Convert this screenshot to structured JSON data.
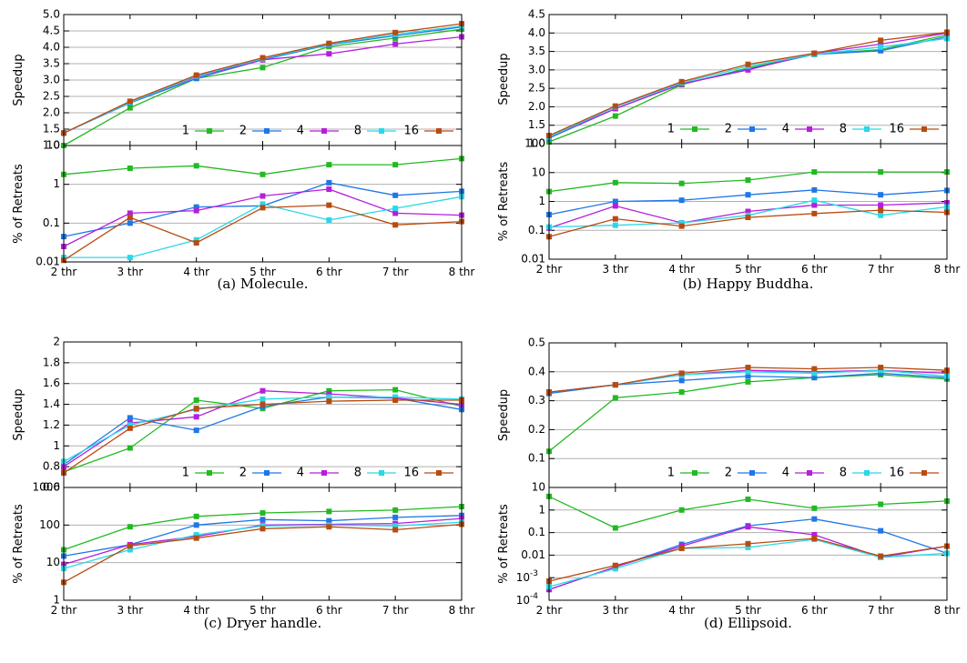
{
  "chart_data": [
    {
      "caption": "(a) Molecule.",
      "type": "line",
      "x": [
        "2 thr",
        "3 thr",
        "4 thr",
        "5 thr",
        "6 thr",
        "7 thr",
        "8 thr"
      ],
      "legend": {
        "placement": "bottom-right"
      },
      "grid": true,
      "series_colors": {
        "1": "#22b922",
        "2": "#1f77e6",
        "4": "#b51fdc",
        "8": "#28d8e8",
        "16": "#b84b10"
      },
      "top": {
        "ylabel": "Speedup",
        "scale": "linear",
        "ylim": [
          1.0,
          5.0
        ],
        "yticks": [
          "1.0",
          "1.5",
          "2.0",
          "2.5",
          "3.0",
          "3.5",
          "4.0",
          "4.5",
          "5.0"
        ],
        "series": [
          {
            "name": "1",
            "values": [
              1.0,
              2.15,
              3.05,
              3.38,
              4.02,
              4.28,
              4.55
            ]
          },
          {
            "name": "2",
            "values": [
              1.38,
              2.3,
              3.05,
              3.62,
              4.08,
              4.35,
              4.62
            ]
          },
          {
            "name": "4",
            "values": [
              1.38,
              2.32,
              3.1,
              3.62,
              3.8,
              4.1,
              4.32
            ]
          },
          {
            "name": "8",
            "values": [
              1.38,
              2.32,
              3.12,
              3.65,
              4.1,
              4.4,
              4.65
            ]
          },
          {
            "name": "16",
            "values": [
              1.38,
              2.35,
              3.15,
              3.68,
              4.12,
              4.45,
              4.72
            ]
          }
        ]
      },
      "bottom": {
        "ylabel": "% of Retreats",
        "scale": "log",
        "ylim": [
          0.01,
          10
        ],
        "yticks": [
          "0.01",
          "0.1",
          "1",
          "10"
        ],
        "series": [
          {
            "name": "1",
            "values": [
              1.8,
              2.6,
              3.0,
              1.8,
              3.2,
              3.2,
              4.6
            ]
          },
          {
            "name": "2",
            "values": [
              0.045,
              0.1,
              0.26,
              0.28,
              1.1,
              0.52,
              0.66
            ]
          },
          {
            "name": "4",
            "values": [
              0.025,
              0.18,
              0.21,
              0.5,
              0.75,
              0.18,
              0.16
            ]
          },
          {
            "name": "8",
            "values": [
              0.013,
              0.013,
              0.037,
              0.31,
              0.12,
              0.24,
              0.48
            ]
          },
          {
            "name": "16",
            "values": [
              0.011,
              0.14,
              0.031,
              0.25,
              0.29,
              0.09,
              0.11
            ]
          }
        ]
      }
    },
    {
      "caption": "(b) Happy Buddha.",
      "type": "line",
      "x": [
        "2 thr",
        "3 thr",
        "4 thr",
        "5 thr",
        "6 thr",
        "7 thr",
        "8 thr"
      ],
      "legend": {
        "placement": "bottom-right"
      },
      "grid": true,
      "series_colors": {
        "1": "#22b922",
        "2": "#1f77e6",
        "4": "#b51fdc",
        "8": "#28d8e8",
        "16": "#b84b10"
      },
      "top": {
        "ylabel": "Speedup",
        "scale": "linear",
        "ylim": [
          1.0,
          4.5
        ],
        "yticks": [
          "1.0",
          "1.5",
          "2.0",
          "2.5",
          "3.0",
          "3.5",
          "4.0",
          "4.5"
        ],
        "series": [
          {
            "name": "1",
            "values": [
              1.05,
              1.75,
              2.6,
              3.05,
              3.42,
              3.55,
              3.95
            ]
          },
          {
            "name": "2",
            "values": [
              1.15,
              1.95,
              2.62,
              3.02,
              3.42,
              3.52,
              3.9
            ]
          },
          {
            "name": "4",
            "values": [
              1.18,
              1.95,
              2.62,
              3.0,
              3.45,
              3.7,
              4.0
            ]
          },
          {
            "name": "8",
            "values": [
              1.18,
              2.0,
              2.65,
              3.1,
              3.42,
              3.62,
              3.85
            ]
          },
          {
            "name": "16",
            "values": [
              1.22,
              2.02,
              2.68,
              3.15,
              3.45,
              3.8,
              4.02
            ]
          }
        ]
      },
      "bottom": {
        "ylabel": "% of Retreats",
        "scale": "log",
        "ylim": [
          0.01,
          100
        ],
        "yticks": [
          "0.01",
          "0.1",
          "1",
          "10",
          "100"
        ],
        "series": [
          {
            "name": "1",
            "values": [
              2.2,
              4.5,
              4.2,
              5.5,
              10.5,
              10.5,
              10.5
            ]
          },
          {
            "name": "2",
            "values": [
              0.35,
              1.0,
              1.1,
              1.7,
              2.5,
              1.7,
              2.4
            ]
          },
          {
            "name": "4",
            "values": [
              0.12,
              0.7,
              0.18,
              0.45,
              0.75,
              0.75,
              0.9
            ]
          },
          {
            "name": "8",
            "values": [
              0.13,
              0.15,
              0.18,
              0.33,
              1.1,
              0.33,
              0.65
            ]
          },
          {
            "name": "16",
            "values": [
              0.06,
              0.25,
              0.14,
              0.28,
              0.38,
              0.5,
              0.42
            ]
          }
        ]
      }
    },
    {
      "caption": "(c) Dryer handle.",
      "type": "line",
      "x": [
        "2 thr",
        "3 thr",
        "4 thr",
        "5 thr",
        "6 thr",
        "7 thr",
        "8 thr"
      ],
      "legend": {
        "placement": "bottom-right"
      },
      "grid": true,
      "series_colors": {
        "1": "#22b922",
        "2": "#1f77e6",
        "4": "#b51fdc",
        "8": "#28d8e8",
        "16": "#b84b10"
      },
      "top": {
        "ylabel": "Speedup",
        "scale": "linear",
        "ylim": [
          0.6,
          2.0
        ],
        "yticks": [
          "0.6",
          "0.8",
          "1",
          "1.2",
          "1.4",
          "1.6",
          "1.8",
          "2"
        ],
        "series": [
          {
            "name": "1",
            "values": [
              0.75,
              0.98,
              1.44,
              1.36,
              1.53,
              1.54,
              1.38
            ]
          },
          {
            "name": "2",
            "values": [
              0.82,
              1.27,
              1.15,
              1.38,
              1.47,
              1.46,
              1.35
            ]
          },
          {
            "name": "4",
            "values": [
              0.8,
              1.22,
              1.28,
              1.53,
              1.5,
              1.46,
              1.4
            ]
          },
          {
            "name": "8",
            "values": [
              0.85,
              1.2,
              1.35,
              1.45,
              1.47,
              1.47,
              1.45
            ]
          },
          {
            "name": "16",
            "values": [
              0.74,
              1.17,
              1.36,
              1.4,
              1.43,
              1.44,
              1.44
            ]
          }
        ]
      },
      "bottom": {
        "ylabel": "% of Retreats",
        "scale": "log",
        "ylim": [
          1,
          1000
        ],
        "yticks": [
          "1",
          "10",
          "100",
          "1000"
        ],
        "series": [
          {
            "name": "1",
            "values": [
              22,
              90,
              170,
              210,
              230,
              250,
              310
            ]
          },
          {
            "name": "2",
            "values": [
              15,
              30,
              100,
              140,
              130,
              160,
              180
            ]
          },
          {
            "name": "4",
            "values": [
              9,
              30,
              50,
              100,
              105,
              110,
              150
            ]
          },
          {
            "name": "8",
            "values": [
              7,
              22,
              55,
              95,
              100,
              95,
              120
            ]
          },
          {
            "name": "16",
            "values": [
              3,
              28,
              45,
              80,
              90,
              75,
              105
            ]
          }
        ]
      }
    },
    {
      "caption": "(d) Ellipsoid.",
      "type": "line",
      "x": [
        "2 thr",
        "3 thr",
        "4 thr",
        "5 thr",
        "6 thr",
        "7 thr",
        "8 thr"
      ],
      "legend": {
        "placement": "bottom-right"
      },
      "grid": true,
      "series_colors": {
        "1": "#22b922",
        "2": "#1f77e6",
        "4": "#b51fdc",
        "8": "#28d8e8",
        "16": "#b84b10"
      },
      "top": {
        "ylabel": "Speedup",
        "scale": "linear",
        "ylim": [
          0.0,
          0.5
        ],
        "yticks": [
          "0.1",
          "0.2",
          "0.3",
          "0.4",
          "0.5"
        ],
        "series": [
          {
            "name": "1",
            "values": [
              0.125,
              0.31,
              0.33,
              0.365,
              0.38,
              0.39,
              0.375
            ]
          },
          {
            "name": "2",
            "values": [
              0.325,
              0.355,
              0.37,
              0.385,
              0.38,
              0.395,
              0.38
            ]
          },
          {
            "name": "4",
            "values": [
              0.33,
              0.355,
              0.39,
              0.405,
              0.4,
              0.405,
              0.395
            ]
          },
          {
            "name": "8",
            "values": [
              0.33,
              0.355,
              0.39,
              0.4,
              0.395,
              0.405,
              0.385
            ]
          },
          {
            "name": "16",
            "values": [
              0.33,
              0.355,
              0.395,
              0.415,
              0.41,
              0.415,
              0.405
            ]
          }
        ]
      },
      "bottom": {
        "ylabel": "% of Retreats",
        "scale": "log",
        "ylim": [
          0.0001,
          10
        ],
        "yticks": [
          "10^-4",
          "10^-3",
          "0.01",
          "0.1",
          "1",
          "10"
        ],
        "series": [
          {
            "name": "1",
            "values": [
              4.0,
              0.16,
              1.0,
              3.0,
              1.2,
              1.8,
              2.5
            ]
          },
          {
            "name": "2",
            "values": [
              0.0003,
              0.003,
              0.03,
              0.2,
              0.4,
              0.12,
              0.012
            ]
          },
          {
            "name": "4",
            "values": [
              0.0003,
              0.003,
              0.025,
              0.18,
              0.08,
              0.008,
              0.025
            ]
          },
          {
            "name": "8",
            "values": [
              0.0004,
              0.0025,
              0.02,
              0.022,
              0.05,
              0.008,
              0.012
            ]
          },
          {
            "name": "16",
            "values": [
              0.0007,
              0.0035,
              0.02,
              0.032,
              0.055,
              0.009,
              0.025
            ]
          }
        ]
      }
    }
  ]
}
